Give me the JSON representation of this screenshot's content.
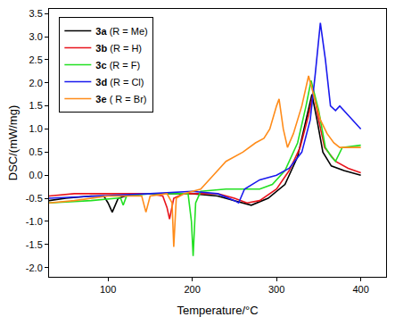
{
  "chart_data": {
    "type": "line",
    "x_label": "Temperature/°C",
    "y_label": "DSC/(mW/mg)",
    "xlim": [
      30,
      430
    ],
    "xticks": [
      100,
      200,
      300,
      400
    ],
    "ylim": [
      -2.2,
      3.6
    ],
    "yticks": [
      {
        "value": -2,
        "label": "-2.0"
      },
      -1.5,
      {
        "value": -1,
        "label": "-1.0"
      },
      -0.5,
      {
        "value": 0,
        "label": "0.0"
      },
      0.5,
      {
        "value": 1,
        "label": "1.0"
      },
      1.5,
      {
        "value": 2,
        "label": "2.0"
      },
      2.5,
      {
        "value": 3,
        "label": "3.0"
      },
      3.5
    ],
    "grid": false,
    "legend": "upper left",
    "series": [
      {
        "name": "3a (R = Me)",
        "color": "#000000",
        "x": [
          30,
          50,
          80,
          95,
          100,
          105,
          112,
          130,
          200,
          230,
          250,
          270,
          290,
          310,
          325,
          335,
          342,
          348,
          355,
          365,
          380,
          400
        ],
        "values": [
          -0.55,
          -0.5,
          -0.45,
          -0.45,
          -0.6,
          -0.8,
          -0.5,
          -0.4,
          -0.4,
          -0.45,
          -0.55,
          -0.65,
          -0.5,
          -0.2,
          0.4,
          1.2,
          1.75,
          1.2,
          0.5,
          0.2,
          0.1,
          0.0
        ]
      },
      {
        "name": "3b (R = H)",
        "color": "#e8141c",
        "x": [
          30,
          60,
          150,
          165,
          170,
          173,
          178,
          190,
          230,
          250,
          265,
          280,
          300,
          315,
          328,
          338,
          344,
          350,
          357,
          370,
          385,
          400
        ],
        "values": [
          -0.45,
          -0.4,
          -0.4,
          -0.45,
          -0.7,
          -0.95,
          -0.5,
          -0.4,
          -0.4,
          -0.5,
          -0.6,
          -0.55,
          -0.3,
          0.1,
          0.6,
          1.3,
          1.8,
          1.2,
          0.6,
          0.3,
          0.15,
          0.05
        ]
      },
      {
        "name": "3c (R = F)",
        "color": "#22e022",
        "x": [
          30,
          80,
          110,
          115,
          118,
          122,
          150,
          195,
          199,
          201,
          204,
          210,
          240,
          260,
          280,
          295,
          310,
          325,
          335,
          341,
          350,
          358,
          365,
          370,
          378,
          400
        ],
        "values": [
          -0.6,
          -0.55,
          -0.5,
          -0.5,
          -0.65,
          -0.45,
          -0.4,
          -0.4,
          -1.0,
          -1.75,
          -0.6,
          -0.35,
          -0.3,
          -0.3,
          -0.3,
          -0.2,
          0.1,
          0.7,
          1.5,
          2.05,
          1.4,
          0.6,
          0.4,
          0.3,
          0.6,
          0.65
        ]
      },
      {
        "name": "3d (R = Cl)",
        "color": "#1a1aee",
        "x": [
          30,
          100,
          150,
          200,
          230,
          250,
          255,
          262,
          280,
          300,
          315,
          330,
          340,
          346,
          352,
          358,
          364,
          370,
          375,
          385,
          400
        ],
        "values": [
          -0.5,
          -0.45,
          -0.4,
          -0.35,
          -0.4,
          -0.55,
          -0.6,
          -0.3,
          -0.1,
          0.0,
          0.15,
          0.5,
          1.2,
          2.2,
          3.3,
          2.5,
          1.5,
          1.4,
          1.5,
          1.3,
          1.0
        ]
      },
      {
        "name": "3e ( R = Br)",
        "color": "#ff8c1a",
        "x": [
          30,
          60,
          100,
          140,
          145,
          150,
          170,
          176,
          178,
          181,
          190,
          210,
          225,
          240,
          260,
          275,
          285,
          292,
          300,
          303,
          308,
          313,
          320,
          330,
          338,
          345,
          352,
          360,
          368,
          375,
          400
        ],
        "values": [
          -0.6,
          -0.55,
          -0.45,
          -0.45,
          -0.8,
          -0.45,
          -0.4,
          -0.6,
          -1.55,
          -0.5,
          -0.4,
          -0.3,
          0.0,
          0.3,
          0.5,
          0.7,
          0.8,
          1.0,
          1.5,
          1.65,
          1.0,
          0.6,
          0.9,
          1.5,
          2.15,
          1.7,
          1.2,
          0.9,
          0.7,
          0.6,
          0.6
        ]
      }
    ]
  }
}
